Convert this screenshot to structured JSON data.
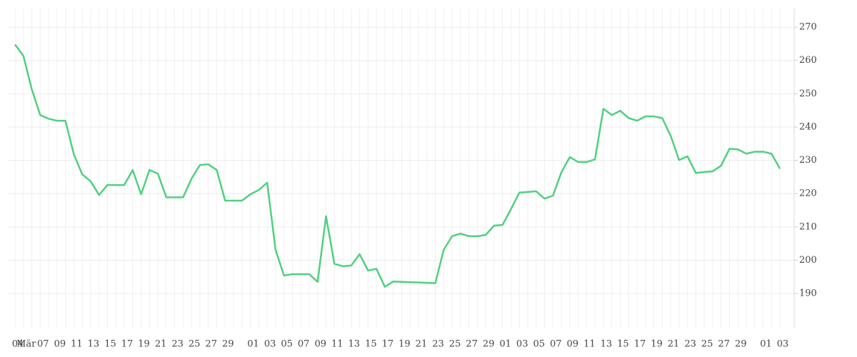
{
  "chart_data": {
    "type": "line",
    "categories": [
      "04",
      "Mär",
      null,
      "07",
      null,
      "09",
      null,
      "11",
      null,
      "13",
      null,
      "15",
      null,
      "17",
      null,
      "19",
      null,
      "21",
      null,
      "23",
      null,
      "25",
      null,
      "27",
      null,
      "29",
      null,
      null,
      "01",
      null,
      "03",
      null,
      "05",
      null,
      "07",
      null,
      "09",
      null,
      "11",
      null,
      "13",
      null,
      "15",
      null,
      "17",
      null,
      "19",
      null,
      "21",
      null,
      "23",
      null,
      "25",
      null,
      "27",
      null,
      "29",
      null,
      "01",
      null,
      "03",
      null,
      "05",
      null,
      "07",
      null,
      "09",
      null,
      "11",
      null,
      "13",
      null,
      "15",
      null,
      "17",
      null,
      "19",
      null,
      "21",
      null,
      "23",
      null,
      "25",
      null,
      "27",
      null,
      "29",
      null,
      null,
      "01",
      null,
      "03"
    ],
    "series": [
      {
        "color": "#4fd17f",
        "values": [
          264.8,
          261.4,
          251.3,
          243.6,
          242.5,
          241.9,
          241.9,
          231.8,
          225.8,
          223.7,
          219.6,
          222.6,
          222.6,
          222.6,
          227.1,
          219.8,
          227.1,
          226.0,
          218.9,
          218.9,
          218.9,
          224.5,
          228.6,
          228.8,
          227.1,
          217.9,
          217.9,
          217.9,
          219.8,
          221.1,
          223.3,
          203.1,
          195.4,
          195.8,
          195.8,
          195.8,
          193.5,
          213.2,
          198.9,
          198.2,
          198.4,
          201.8,
          196.9,
          197.4,
          192.0,
          193.6,
          193.5,
          193.4,
          193.3,
          193.2,
          193.1,
          203.1,
          207.2,
          208.0,
          207.2,
          207.2,
          207.6,
          210.4,
          210.6,
          215.3,
          220.3,
          220.5,
          220.7,
          218.5,
          219.4,
          226.4,
          231.0,
          229.5,
          229.5,
          230.3,
          245.5,
          243.6,
          244.9,
          242.7,
          241.9,
          243.2,
          243.2,
          242.7,
          237.4,
          230.1,
          231.2,
          226.2,
          226.5,
          226.7,
          228.4,
          233.5,
          233.3,
          232.0,
          232.6,
          232.6,
          232.0,
          227.5
        ]
      }
    ],
    "ylim": [
      179.5,
      275.6
    ],
    "yticks": [
      190,
      200,
      210,
      220,
      230,
      240,
      250,
      260,
      270
    ],
    "grid": true
  }
}
